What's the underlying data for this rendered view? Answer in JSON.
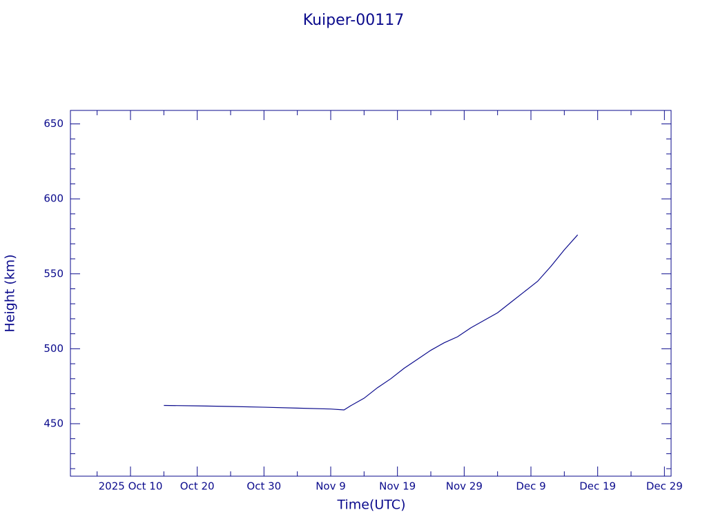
{
  "chart_data": {
    "type": "line",
    "title": "Kuiper-00117",
    "x_label": "Time(UTC)",
    "y_label": "Height (km)",
    "color": "#0a0a8c",
    "x": [
      "2025-10-15",
      "2025-10-20",
      "2025-10-25",
      "2025-10-30",
      "2025-11-04",
      "2025-11-09",
      "2025-11-11",
      "2025-11-12",
      "2025-11-14",
      "2025-11-16",
      "2025-11-18",
      "2025-11-20",
      "2025-11-22",
      "2025-11-24",
      "2025-11-26",
      "2025-11-28",
      "2025-11-30",
      "2025-12-02",
      "2025-12-04",
      "2025-12-06",
      "2025-12-08",
      "2025-12-10",
      "2025-12-12",
      "2025-12-14",
      "2025-12-16"
    ],
    "values": [
      462.2,
      461.9,
      461.5,
      461.0,
      460.4,
      459.8,
      459.2,
      462,
      467,
      474,
      480,
      487,
      493,
      499,
      504,
      508,
      514,
      519,
      524,
      531,
      538,
      545,
      555,
      566,
      576
    ],
    "xlim": [
      "2025-10-01",
      "2025-12-30"
    ],
    "xticks": [
      {
        "value": "2025-10-10",
        "label": "2025 Oct 10"
      },
      {
        "value": "2025-10-20",
        "label": "Oct 20"
      },
      {
        "value": "2025-10-30",
        "label": "Oct 30"
      },
      {
        "value": "2025-11-09",
        "label": "Nov 9"
      },
      {
        "value": "2025-11-19",
        "label": "Nov 19"
      },
      {
        "value": "2025-11-29",
        "label": "Nov 29"
      },
      {
        "value": "2025-12-09",
        "label": "Dec 9"
      },
      {
        "value": "2025-12-19",
        "label": "Dec 19"
      },
      {
        "value": "2025-12-29",
        "label": "Dec 29"
      }
    ],
    "xminorticks": [
      "2025-10-05",
      "2025-10-15",
      "2025-10-25",
      "2025-11-04",
      "2025-11-14",
      "2025-11-24",
      "2025-12-04",
      "2025-12-14",
      "2025-12-24"
    ],
    "ylim": [
      415,
      659
    ],
    "yticks": [
      450,
      500,
      550,
      600,
      650
    ],
    "yminorticks": [
      420,
      430,
      440,
      460,
      470,
      480,
      490,
      510,
      520,
      530,
      540,
      560,
      570,
      580,
      590,
      610,
      620,
      630,
      640
    ]
  }
}
